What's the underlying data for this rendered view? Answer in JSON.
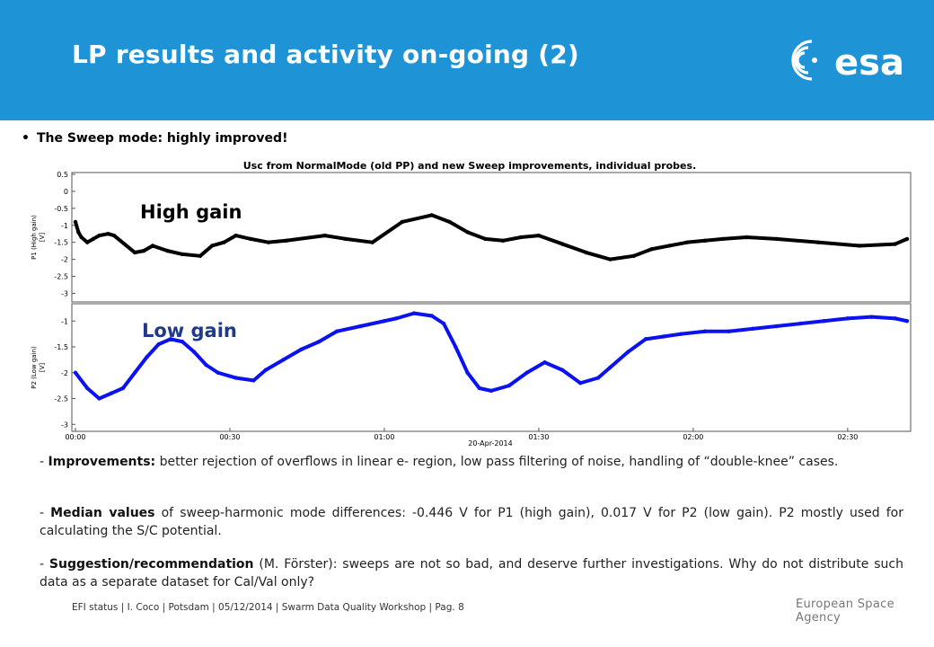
{
  "header": {
    "title": "LP results and activity on-going (2)",
    "logo_text": "esa",
    "bg_color": "#1e93d6"
  },
  "bullet": {
    "text": "The Sweep mode: highly improved!"
  },
  "figure": {
    "title": "Usc from NormalMode (old PP) and new Sweep improvements, individual probes.",
    "label_high": "High gain",
    "label_low": "Low gain",
    "date": "20-Apr-2014",
    "x_ticks": [
      "00:00",
      "00:30",
      "01:00",
      "01:30",
      "02:00",
      "02:30"
    ],
    "top_ylabel_1": "P1 (High gain)",
    "top_ylabel_2": "[V]",
    "bottom_ylabel_1": "P2 (Low gain)",
    "bottom_ylabel_2": "[V]",
    "top_yticks": [
      "0.5",
      "0",
      "-0.5",
      "-1",
      "-1.5",
      "-2",
      "-2.5",
      "-3"
    ],
    "bottom_yticks": [
      "-1",
      "-1.5",
      "-2",
      "-2.5",
      "-3"
    ],
    "top_color": "#000000",
    "bottom_color": "#0b12f0"
  },
  "chart_data": [
    {
      "type": "scatter",
      "name": "P1 (High gain)",
      "xlabel": "",
      "ylabel": "P1 (High gain) [V]",
      "ylim": [
        -3.2,
        0.5
      ],
      "x_ticks": [
        "00:00",
        "00:30",
        "01:00",
        "01:30",
        "02:00",
        "02:30"
      ],
      "points": [
        [
          0.0,
          -0.9
        ],
        [
          0.05,
          -1.2
        ],
        [
          0.1,
          -1.35
        ],
        [
          0.2,
          -1.5
        ],
        [
          0.3,
          -1.4
        ],
        [
          0.4,
          -1.3
        ],
        [
          0.55,
          -1.25
        ],
        [
          0.65,
          -1.3
        ],
        [
          1.0,
          -1.8
        ],
        [
          1.15,
          -1.75
        ],
        [
          1.3,
          -1.6
        ],
        [
          1.55,
          -1.75
        ],
        [
          1.8,
          -1.85
        ],
        [
          2.1,
          -1.9
        ],
        [
          2.3,
          -1.6
        ],
        [
          2.5,
          -1.5
        ],
        [
          2.7,
          -1.3
        ],
        [
          2.95,
          -1.4
        ],
        [
          3.25,
          -1.5
        ],
        [
          3.55,
          -1.45
        ],
        [
          4.2,
          -1.3
        ],
        [
          4.55,
          -1.4
        ],
        [
          5.0,
          -1.5
        ],
        [
          5.5,
          -0.9
        ],
        [
          6.0,
          -0.7
        ],
        [
          6.3,
          -0.9
        ],
        [
          6.6,
          -1.2
        ],
        [
          6.9,
          -1.4
        ],
        [
          7.2,
          -1.45
        ],
        [
          7.5,
          -1.35
        ],
        [
          7.8,
          -1.3
        ],
        [
          8.2,
          -1.55
        ],
        [
          8.6,
          -1.8
        ],
        [
          9.0,
          -2.0
        ],
        [
          9.4,
          -1.9
        ],
        [
          9.7,
          -1.7
        ],
        [
          10.0,
          -1.6
        ],
        [
          10.3,
          -1.5
        ],
        [
          10.6,
          -1.45
        ],
        [
          10.9,
          -1.4
        ],
        [
          11.3,
          -1.35
        ],
        [
          11.8,
          -1.4
        ],
        [
          12.5,
          -1.5
        ],
        [
          13.2,
          -1.6
        ],
        [
          13.8,
          -1.55
        ],
        [
          14.0,
          -1.4
        ]
      ]
    },
    {
      "type": "scatter",
      "name": "P2 (Low gain)",
      "xlabel": "",
      "ylabel": "P2 (Low gain) [V]",
      "ylim": [
        -3.1,
        -0.7
      ],
      "x_ticks": [
        "00:00",
        "00:30",
        "01:00",
        "01:30",
        "02:00",
        "02:30"
      ],
      "points": [
        [
          0.0,
          -2.0
        ],
        [
          0.2,
          -2.3
        ],
        [
          0.4,
          -2.5
        ],
        [
          0.6,
          -2.4
        ],
        [
          0.8,
          -2.3
        ],
        [
          1.0,
          -2.0
        ],
        [
          1.2,
          -1.7
        ],
        [
          1.4,
          -1.45
        ],
        [
          1.6,
          -1.35
        ],
        [
          1.8,
          -1.4
        ],
        [
          2.0,
          -1.6
        ],
        [
          2.2,
          -1.85
        ],
        [
          2.4,
          -2.0
        ],
        [
          2.7,
          -2.1
        ],
        [
          3.0,
          -2.15
        ],
        [
          3.2,
          -1.95
        ],
        [
          3.5,
          -1.75
        ],
        [
          3.8,
          -1.55
        ],
        [
          4.1,
          -1.4
        ],
        [
          4.4,
          -1.2
        ],
        [
          4.8,
          -1.1
        ],
        [
          5.2,
          -1.0
        ],
        [
          5.4,
          -0.95
        ],
        [
          5.7,
          -0.85
        ],
        [
          6.0,
          -0.9
        ],
        [
          6.2,
          -1.05
        ],
        [
          6.4,
          -1.5
        ],
        [
          6.6,
          -2.0
        ],
        [
          6.8,
          -2.3
        ],
        [
          7.0,
          -2.35
        ],
        [
          7.3,
          -2.25
        ],
        [
          7.6,
          -2.0
        ],
        [
          7.9,
          -1.8
        ],
        [
          8.2,
          -1.95
        ],
        [
          8.5,
          -2.2
        ],
        [
          8.8,
          -2.1
        ],
        [
          9.0,
          -1.9
        ],
        [
          9.3,
          -1.6
        ],
        [
          9.6,
          -1.35
        ],
        [
          9.9,
          -1.3
        ],
        [
          10.2,
          -1.25
        ],
        [
          10.6,
          -1.2
        ],
        [
          11.0,
          -1.2
        ],
        [
          11.4,
          -1.15
        ],
        [
          11.8,
          -1.1
        ],
        [
          12.2,
          -1.05
        ],
        [
          12.6,
          -1.0
        ],
        [
          13.0,
          -0.95
        ],
        [
          13.4,
          -0.92
        ],
        [
          13.8,
          -0.95
        ],
        [
          14.0,
          -1.0
        ]
      ]
    }
  ],
  "paragraphs": [
    {
      "prefix": "- ",
      "bold": "Improvements:",
      "rest": " better rejection of overflows in linear e- region, low pass filtering of noise, handling of “double-knee” cases."
    },
    {
      "prefix": "- ",
      "bold": "Median values",
      "rest": " of sweep-harmonic mode differences: -0.446 V for P1 (high gain), 0.017 V for P2 (low gain). P2 mostly used for calculating the S/C potential."
    },
    {
      "prefix": "- ",
      "bold": "Suggestion/recommendation",
      "rest": " (M. Förster): sweeps are not so bad, and deserve further investigations. Why do not distribute such data as a separate dataset for Cal/Val only?"
    }
  ],
  "footer": {
    "text": "EFI status | I. Coco | Potsdam | 05/12/2014 | Swarm Data Quality Workshop | Pag. 8",
    "agency": "European Space Agency"
  }
}
